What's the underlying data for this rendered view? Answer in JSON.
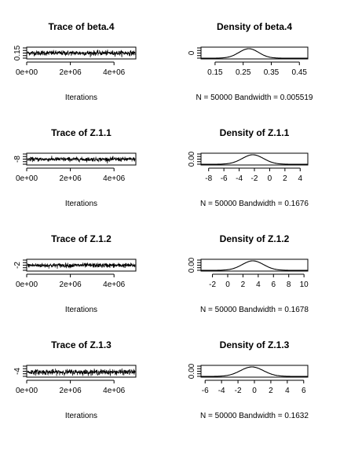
{
  "figure": "MCMC trace and density plots",
  "chart_data": [
    {
      "type": "line",
      "panel": "trace",
      "title": "Trace of beta.4",
      "xlabel": "Iterations",
      "xlim": [
        0,
        5000000
      ],
      "ylim": [
        0.12,
        0.42
      ],
      "x_ticks": [
        "0e+00",
        "2e+06",
        "4e+06"
      ],
      "x_tick_values": [
        0,
        2000000,
        4000000
      ],
      "y_ticks": [
        "0.15"
      ],
      "y_tick_values": [
        0.15
      ],
      "series": [
        {
          "mean": 0.27,
          "sd": 0.035,
          "samples": 50000
        }
      ]
    },
    {
      "type": "line",
      "panel": "density",
      "title": "Density of beta.4",
      "xlabel": "N = 50000   Bandwidth = 0.005519",
      "xlim": [
        0.1,
        0.48
      ],
      "ylim": [
        0,
        12
      ],
      "x_ticks": [
        "0.15",
        "0.25",
        "0.35",
        "0.45"
      ],
      "x_tick_values": [
        0.15,
        0.25,
        0.35,
        0.45
      ],
      "y_ticks": [
        "0"
      ],
      "y_tick_values": [
        0
      ],
      "series": [
        {
          "mean": 0.27,
          "sd": 0.035
        }
      ]
    },
    {
      "type": "line",
      "panel": "trace",
      "title": "Trace of Z.1.1",
      "xlabel": "Iterations",
      "xlim": [
        0,
        5000000
      ],
      "ylim": [
        -9,
        5
      ],
      "x_ticks": [
        "0e+00",
        "2e+06",
        "4e+06"
      ],
      "x_tick_values": [
        0,
        2000000,
        4000000
      ],
      "y_ticks": [
        "-8"
      ],
      "y_tick_values": [
        -8
      ],
      "series": [
        {
          "mean": -2.2,
          "sd": 1.4,
          "samples": 50000
        }
      ]
    },
    {
      "type": "line",
      "panel": "density",
      "title": "Density of Z.1.1",
      "xlabel": "N = 50000   Bandwidth = 0.1676",
      "xlim": [
        -9,
        5
      ],
      "ylim": [
        0,
        0.32
      ],
      "x_ticks": [
        "-8",
        "-6",
        "-4",
        "-2",
        "0",
        "2",
        "4"
      ],
      "x_tick_values": [
        -8,
        -6,
        -4,
        -2,
        0,
        2,
        4
      ],
      "y_ticks": [
        "0.00"
      ],
      "y_tick_values": [
        0
      ],
      "series": [
        {
          "mean": -2.2,
          "sd": 1.4
        }
      ]
    },
    {
      "type": "line",
      "panel": "trace",
      "title": "Trace of Z.1.2",
      "xlabel": "Iterations",
      "xlim": [
        0,
        5000000
      ],
      "ylim": [
        -3,
        10
      ],
      "x_ticks": [
        "0e+00",
        "2e+06",
        "4e+06"
      ],
      "x_tick_values": [
        0,
        2000000,
        4000000
      ],
      "y_ticks": [
        "-2"
      ],
      "y_tick_values": [
        -2
      ],
      "series": [
        {
          "mean": 3.3,
          "sd": 1.4,
          "samples": 50000
        }
      ]
    },
    {
      "type": "line",
      "panel": "density",
      "title": "Density of Z.1.2",
      "xlabel": "N = 50000   Bandwidth = 0.1678",
      "xlim": [
        -3.5,
        10.5
      ],
      "ylim": [
        0,
        0.32
      ],
      "x_ticks": [
        "-2",
        "0",
        "2",
        "4",
        "6",
        "8",
        "10"
      ],
      "x_tick_values": [
        -2,
        0,
        2,
        4,
        6,
        8,
        10
      ],
      "y_ticks": [
        "0.00"
      ],
      "y_tick_values": [
        0
      ],
      "series": [
        {
          "mean": 3.3,
          "sd": 1.4
        }
      ]
    },
    {
      "type": "line",
      "panel": "trace",
      "title": "Trace of Z.1.3",
      "xlabel": "Iterations",
      "xlim": [
        0,
        5000000
      ],
      "ylim": [
        -5,
        6
      ],
      "x_ticks": [
        "0e+00",
        "2e+06",
        "4e+06"
      ],
      "x_tick_values": [
        0,
        2000000,
        4000000
      ],
      "y_ticks": [
        "-4"
      ],
      "y_tick_values": [
        -4
      ],
      "series": [
        {
          "mean": -0.3,
          "sd": 1.4,
          "samples": 50000
        }
      ]
    },
    {
      "type": "line",
      "panel": "density",
      "title": "Density of Z.1.3",
      "xlabel": "N = 50000   Bandwidth = 0.1632",
      "xlim": [
        -6.5,
        6.5
      ],
      "ylim": [
        0,
        0.32
      ],
      "x_ticks": [
        "-6",
        "-4",
        "-2",
        "0",
        "2",
        "4",
        "6"
      ],
      "x_tick_values": [
        -6,
        -4,
        -2,
        0,
        2,
        4,
        6
      ],
      "y_ticks": [
        "0.00"
      ],
      "y_tick_values": [
        0
      ],
      "series": [
        {
          "mean": -0.3,
          "sd": 1.4
        }
      ]
    }
  ]
}
